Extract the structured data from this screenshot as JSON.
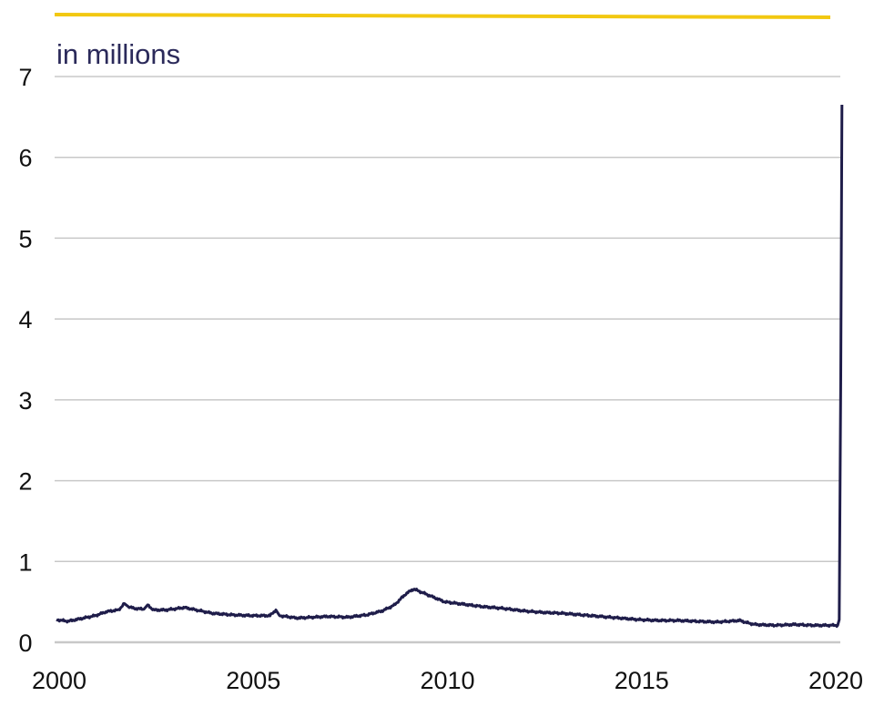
{
  "chart_data": {
    "type": "line",
    "title": "",
    "unit_label": "in millions",
    "xlabel": "",
    "ylabel": "",
    "xlim": [
      2000,
      2020
    ],
    "ylim": [
      0,
      7
    ],
    "x_ticks": [
      "2000",
      "2005",
      "2010",
      "2015",
      "2020"
    ],
    "y_ticks": [
      "0",
      "1",
      "2",
      "3",
      "4",
      "5",
      "6",
      "7"
    ],
    "grid": "horizontal",
    "legend": "none",
    "colors": {
      "line": "#1f1d4a",
      "accent_bar": "#f2c811",
      "grid": "#c8c8c8",
      "unit_label": "#2b2a5a"
    },
    "series": [
      {
        "x": [
          2000.0,
          2000.3,
          2000.6,
          2001.0,
          2001.3,
          2001.6,
          2001.75,
          2001.85,
          2002.0,
          2002.25,
          2002.35,
          2002.5,
          2002.8,
          2003.0,
          2003.3,
          2003.6,
          2004.0,
          2004.5,
          2005.0,
          2005.5,
          2005.65,
          2005.75,
          2005.9,
          2006.2,
          2006.6,
          2007.0,
          2007.5,
          2008.0,
          2008.4,
          2008.7,
          2009.0,
          2009.2,
          2009.5,
          2010.0,
          2010.5,
          2011.0,
          2011.5,
          2012.0,
          2012.5,
          2013.0,
          2013.5,
          2014.0,
          2014.5,
          2015.0,
          2015.5,
          2016.0,
          2016.5,
          2017.0,
          2017.6,
          2017.8,
          2018.0,
          2018.5,
          2019.0,
          2019.5,
          2020.0,
          2020.12,
          2020.16,
          2020.2,
          2020.23
        ],
        "values": [
          0.28,
          0.26,
          0.29,
          0.33,
          0.38,
          0.4,
          0.48,
          0.44,
          0.42,
          0.41,
          0.46,
          0.4,
          0.4,
          0.41,
          0.43,
          0.4,
          0.36,
          0.34,
          0.33,
          0.33,
          0.4,
          0.33,
          0.32,
          0.3,
          0.31,
          0.32,
          0.31,
          0.34,
          0.39,
          0.46,
          0.6,
          0.66,
          0.6,
          0.5,
          0.47,
          0.44,
          0.42,
          0.39,
          0.37,
          0.36,
          0.34,
          0.32,
          0.3,
          0.28,
          0.27,
          0.27,
          0.26,
          0.25,
          0.27,
          0.24,
          0.22,
          0.21,
          0.22,
          0.21,
          0.21,
          0.21,
          0.28,
          3.3,
          6.65
        ]
      }
    ]
  }
}
